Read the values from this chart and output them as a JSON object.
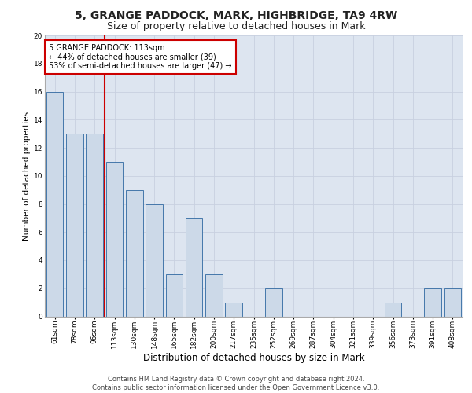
{
  "title1": "5, GRANGE PADDOCK, MARK, HIGHBRIDGE, TA9 4RW",
  "title2": "Size of property relative to detached houses in Mark",
  "xlabel": "Distribution of detached houses by size in Mark",
  "ylabel": "Number of detached properties",
  "categories": [
    "61sqm",
    "78sqm",
    "96sqm",
    "113sqm",
    "130sqm",
    "148sqm",
    "165sqm",
    "182sqm",
    "200sqm",
    "217sqm",
    "235sqm",
    "252sqm",
    "269sqm",
    "287sqm",
    "304sqm",
    "321sqm",
    "339sqm",
    "356sqm",
    "373sqm",
    "391sqm",
    "408sqm"
  ],
  "values": [
    16,
    13,
    13,
    11,
    9,
    8,
    3,
    7,
    3,
    1,
    0,
    2,
    0,
    0,
    0,
    0,
    0,
    1,
    0,
    2,
    2
  ],
  "bar_color": "#ccd9e8",
  "bar_edge_color": "#4477aa",
  "vline_color": "#cc0000",
  "annotation_box_color": "#cc0000",
  "annotation_box_text": "5 GRANGE PADDOCK: 113sqm\n← 44% of detached houses are smaller (39)\n53% of semi-detached houses are larger (47) →",
  "ylim": [
    0,
    20
  ],
  "yticks": [
    0,
    2,
    4,
    6,
    8,
    10,
    12,
    14,
    16,
    18,
    20
  ],
  "grid_color": "#c8d0e0",
  "background_color": "#dde5f0",
  "footer": "Contains HM Land Registry data © Crown copyright and database right 2024.\nContains public sector information licensed under the Open Government Licence v3.0.",
  "title1_fontsize": 10,
  "title2_fontsize": 9,
  "xlabel_fontsize": 8.5,
  "ylabel_fontsize": 7.5,
  "tick_fontsize": 6.5,
  "annotation_fontsize": 7,
  "footer_fontsize": 6
}
